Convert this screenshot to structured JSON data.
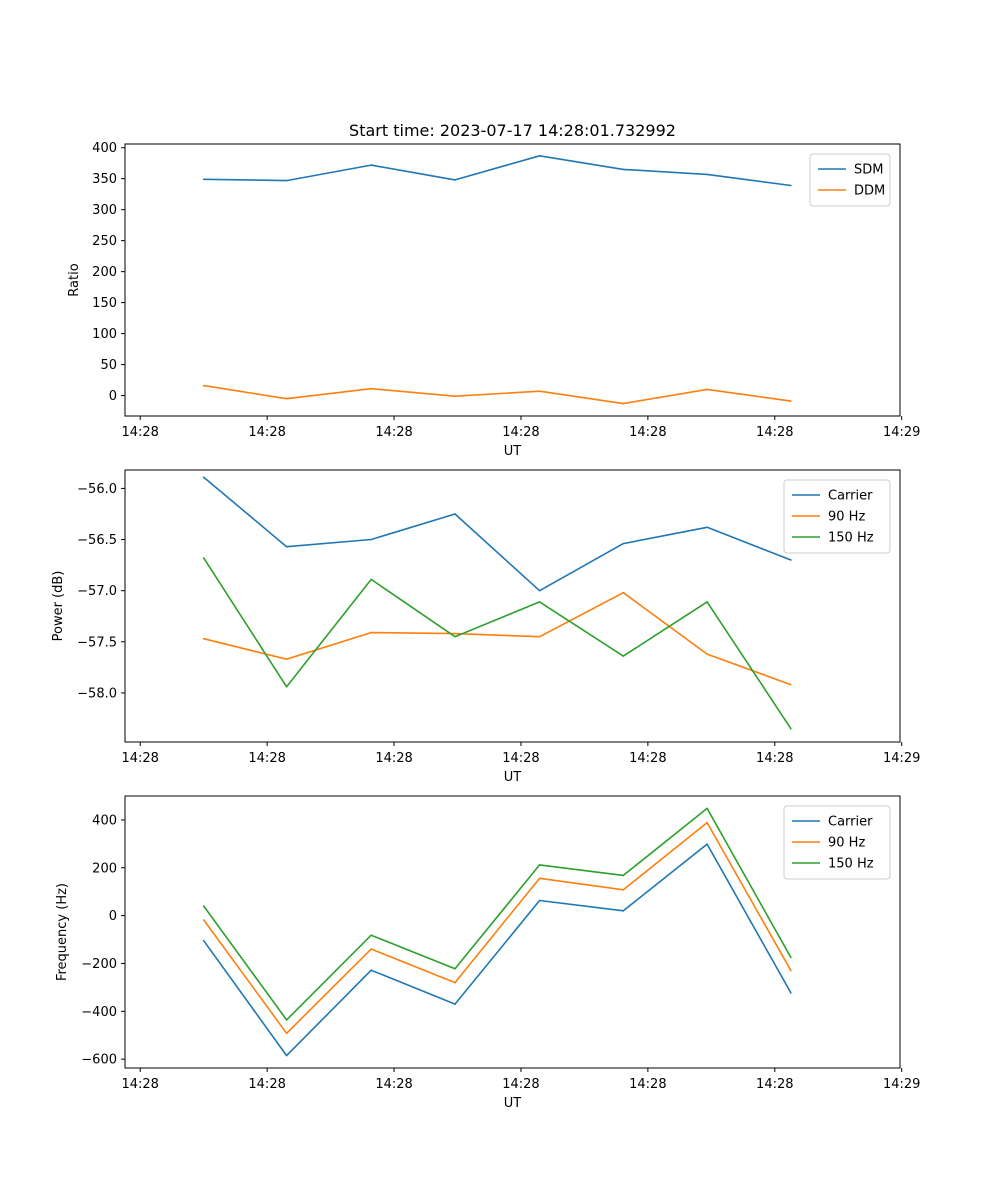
{
  "chart_data": [
    {
      "type": "line",
      "title": "Start time: 2023-07-17 14:28:01.732992",
      "xlabel": "UT",
      "ylabel": "Ratio",
      "xlim": [
        -0.18,
        8.98
      ],
      "x_ticks": [
        0,
        1.5,
        3,
        4.5,
        6,
        7.5,
        9
      ],
      "x_tick_labels": [
        "14:28",
        "14:28",
        "14:28",
        "14:28",
        "14:28",
        "14:28",
        "14:29"
      ],
      "ylim": [
        -33,
        406
      ],
      "y_ticks": [
        0,
        50,
        100,
        150,
        200,
        250,
        300,
        350,
        400
      ],
      "y_tick_labels": [
        "0",
        "50",
        "100",
        "150",
        "200",
        "250",
        "300",
        "350",
        "400"
      ],
      "legend": "top-right",
      "x": [
        0.75,
        1.73,
        2.73,
        3.72,
        4.72,
        5.71,
        6.7,
        7.69
      ],
      "series": [
        {
          "name": "SDM",
          "color": "#1f77b4",
          "values": [
            349,
            347,
            372,
            348,
            387,
            365,
            357,
            339
          ]
        },
        {
          "name": "DDM",
          "color": "#ff7f0e",
          "values": [
            16,
            -5,
            11,
            -1,
            7,
            -13,
            10,
            -9
          ]
        }
      ]
    },
    {
      "type": "line",
      "title": "",
      "xlabel": "UT",
      "ylabel": "Power (dB)",
      "xlim": [
        -0.18,
        8.98
      ],
      "x_ticks": [
        0,
        1.5,
        3,
        4.5,
        6,
        7.5,
        9
      ],
      "x_tick_labels": [
        "14:28",
        "14:28",
        "14:28",
        "14:28",
        "14:28",
        "14:28",
        "14:29"
      ],
      "ylim": [
        -58.48,
        -55.82
      ],
      "y_ticks": [
        -56.0,
        -56.5,
        -57.0,
        -57.5,
        -58.0
      ],
      "y_tick_labels": [
        "−56.0",
        "−56.5",
        "−57.0",
        "−57.5",
        "−58.0"
      ],
      "legend": "top-right",
      "x": [
        0.75,
        1.73,
        2.73,
        3.72,
        4.72,
        5.71,
        6.7,
        7.69
      ],
      "series": [
        {
          "name": "Carrier",
          "color": "#1f77b4",
          "values": [
            -55.89,
            -56.57,
            -56.5,
            -56.25,
            -57.0,
            -56.54,
            -56.38,
            -56.7
          ]
        },
        {
          "name": "90 Hz",
          "color": "#ff7f0e",
          "values": [
            -57.47,
            -57.67,
            -57.41,
            -57.42,
            -57.45,
            -57.02,
            -57.62,
            -57.92
          ]
        },
        {
          "name": "150 Hz",
          "color": "#2ca02c",
          "values": [
            -56.68,
            -57.94,
            -56.89,
            -57.45,
            -57.11,
            -57.64,
            -57.11,
            -58.35
          ]
        }
      ]
    },
    {
      "type": "line",
      "title": "",
      "xlabel": "UT",
      "ylabel": "Frequency (Hz)",
      "xlim": [
        -0.18,
        8.98
      ],
      "x_ticks": [
        0,
        1.5,
        3,
        4.5,
        6,
        7.5,
        9
      ],
      "x_tick_labels": [
        "14:28",
        "14:28",
        "14:28",
        "14:28",
        "14:28",
        "14:28",
        "14:29"
      ],
      "ylim": [
        -637,
        500
      ],
      "y_ticks": [
        -600,
        -400,
        -200,
        0,
        200,
        400
      ],
      "y_tick_labels": [
        "−600",
        "−400",
        "−200",
        "0",
        "200",
        "400"
      ],
      "legend": "top-right",
      "x": [
        0.75,
        1.73,
        2.73,
        3.72,
        4.72,
        5.71,
        6.7,
        7.69
      ],
      "series": [
        {
          "name": "Carrier",
          "color": "#1f77b4",
          "values": [
            -105,
            -585,
            -228,
            -370,
            63,
            20,
            299,
            -323
          ]
        },
        {
          "name": "90 Hz",
          "color": "#ff7f0e",
          "values": [
            -18,
            -492,
            -140,
            -280,
            156,
            108,
            389,
            -230
          ]
        },
        {
          "name": "150 Hz",
          "color": "#2ca02c",
          "values": [
            40,
            -436,
            -82,
            -222,
            212,
            168,
            448,
            -175
          ]
        }
      ]
    }
  ]
}
